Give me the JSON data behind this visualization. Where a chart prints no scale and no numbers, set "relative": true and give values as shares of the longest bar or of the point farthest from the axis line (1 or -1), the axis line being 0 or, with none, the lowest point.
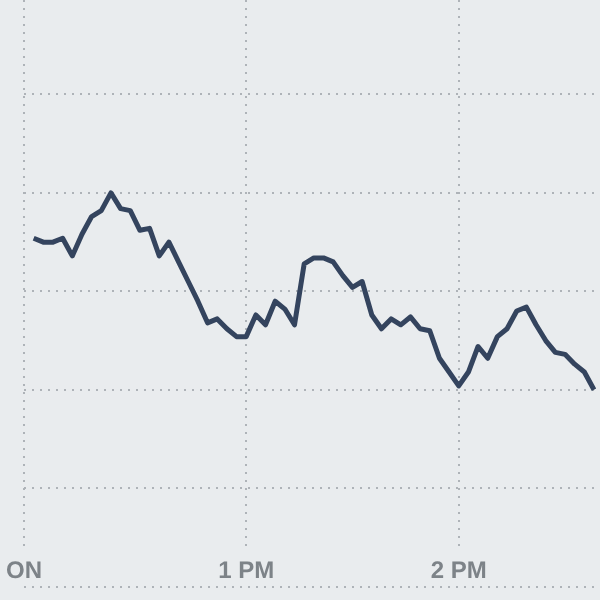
{
  "chart_data": {
    "type": "line",
    "relative": true,
    "categories": [
      "ON",
      null,
      null,
      null,
      null,
      null,
      null,
      null,
      null,
      null,
      null,
      null,
      null,
      null,
      null,
      null,
      null,
      null,
      null,
      null,
      null,
      null,
      null,
      "1 PM",
      null,
      null,
      null,
      null,
      null,
      null,
      null,
      null,
      null,
      null,
      null,
      null,
      null,
      null,
      null,
      null,
      null,
      null,
      null,
      null,
      null,
      "2 PM",
      null,
      null,
      null,
      null,
      null,
      null,
      null,
      null,
      null,
      null,
      null,
      null,
      null,
      null
    ],
    "grid": true,
    "marker": "none",
    "line_style": "solid",
    "series": [
      {
        "color": "#34445e",
        "values": [
          null,
          0.77,
          0.75,
          0.75,
          0.77,
          0.68,
          0.79,
          0.88,
          0.91,
          1,
          0.92,
          0.91,
          0.81,
          0.82,
          0.68,
          0.75,
          0.65,
          0.55,
          0.45,
          0.34,
          0.36,
          0.31,
          0.27,
          0.27,
          0.38,
          0.33,
          0.45,
          0.41,
          0.33,
          0.64,
          0.67,
          0.67,
          0.65,
          0.58,
          0.52,
          0.55,
          0.38,
          0.31,
          0.36,
          0.33,
          0.37,
          0.31,
          0.3,
          0.16,
          0.09,
          0.02,
          0.09,
          0.22,
          0.16,
          0.27,
          0.31,
          0.4,
          0.42,
          0.33,
          0.25,
          0.19,
          0.18,
          0.13,
          0.09,
          0
        ]
      }
    ]
  }
}
